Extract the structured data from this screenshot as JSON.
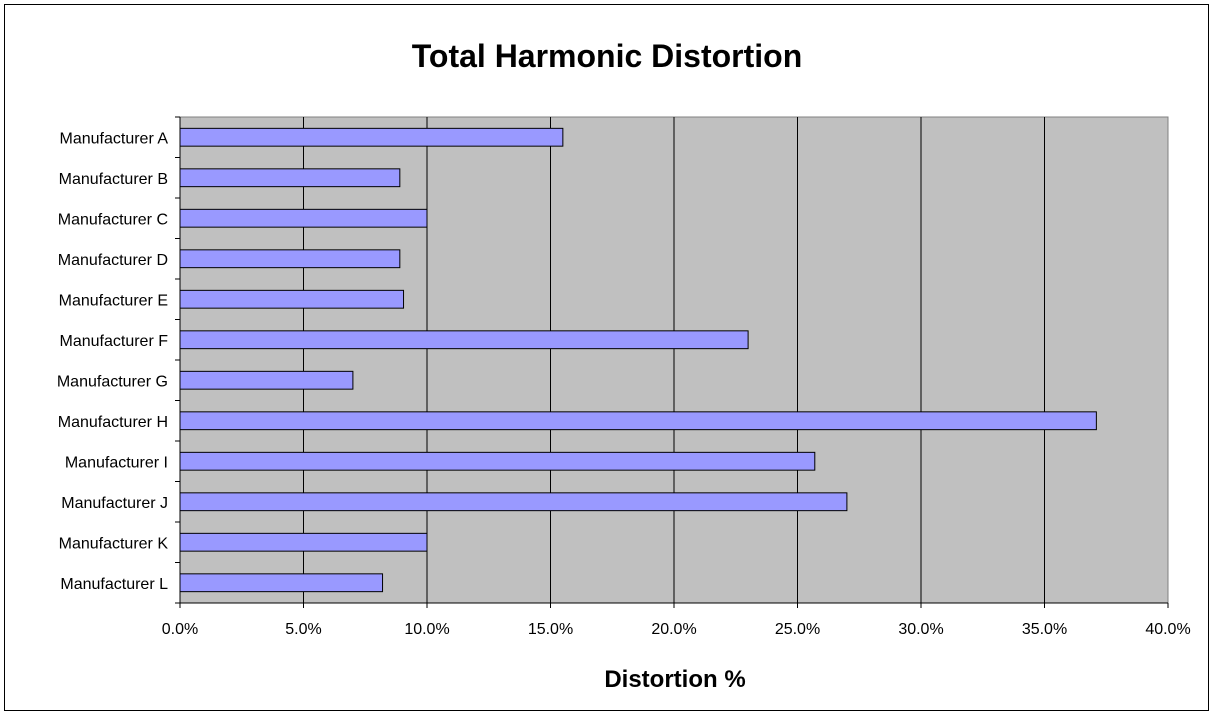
{
  "chart_data": {
    "type": "bar",
    "orientation": "horizontal",
    "title": "Total Harmonic Distortion",
    "xlabel": "Distortion %",
    "ylabel": "",
    "categories": [
      "Manufacturer A",
      "Manufacturer B",
      "Manufacturer C",
      "Manufacturer D",
      "Manufacturer E",
      "Manufacturer F",
      "Manufacturer G",
      "Manufacturer H",
      "Manufacturer I",
      "Manufacturer J",
      "Manufacturer K",
      "Manufacturer L"
    ],
    "values": [
      15.5,
      8.9,
      10.0,
      8.9,
      9.05,
      23.0,
      7.0,
      37.1,
      25.7,
      27.0,
      10.0,
      8.2
    ],
    "xlim": [
      0,
      40
    ],
    "x_ticks": [
      "0.0%",
      "5.0%",
      "10.0%",
      "15.0%",
      "20.0%",
      "25.0%",
      "30.0%",
      "35.0%",
      "40.0%"
    ],
    "grid": "vertical",
    "legend": "none",
    "colors": {
      "bar_fill": "#9999ff",
      "bar_stroke": "#000000",
      "plot_background": "#c0c0c0",
      "gridline": "#000000"
    }
  }
}
